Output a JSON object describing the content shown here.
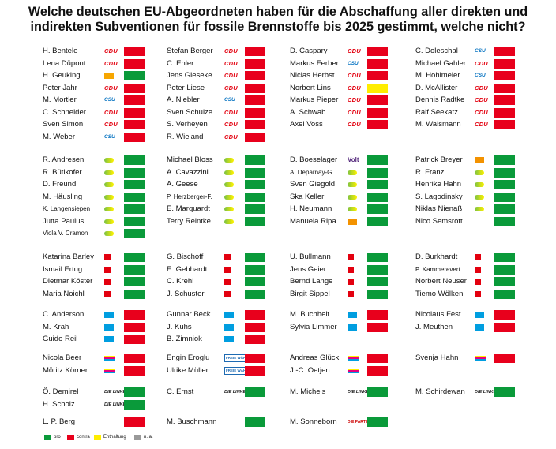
{
  "title": "Welche deutschen EU-Abgeordneten haben für die Abschaffung aller direkten und indirekten Subventionen für fossile Brennstoffe bis 2025 gestimmt, welche nicht?",
  "colors": {
    "pro": "#0a9a3a",
    "contra": "#e8001c",
    "abstain": "#ffed00",
    "na": "#999999"
  },
  "legend": [
    {
      "key": "pro",
      "label": "pro"
    },
    {
      "key": "contra",
      "label": "contra"
    },
    {
      "key": "abstain",
      "label": "Enthaltung"
    },
    {
      "key": "na",
      "label": "n. a."
    }
  ],
  "groups": [
    {
      "id": "cdu-csu",
      "columns": [
        [
          {
            "name": "H. Bentele",
            "party": "CDU",
            "vote": "contra"
          },
          {
            "name": "Lena Düpont",
            "party": "CDU",
            "vote": "contra"
          },
          {
            "name": "H. Geuking",
            "party": "Familien",
            "vote": "pro"
          },
          {
            "name": "Peter Jahr",
            "party": "CDU",
            "vote": "contra"
          },
          {
            "name": "M. Mortler",
            "party": "CSU",
            "vote": "contra"
          },
          {
            "name": "C. Schneider",
            "party": "CDU",
            "vote": "contra"
          },
          {
            "name": "Sven Simon",
            "party": "CDU",
            "vote": "contra"
          },
          {
            "name": "M. Weber",
            "party": "CSU",
            "vote": "contra"
          }
        ],
        [
          {
            "name": "Stefan Berger",
            "party": "CDU",
            "vote": "contra"
          },
          {
            "name": "C. Ehler",
            "party": "CDU",
            "vote": "contra"
          },
          {
            "name": "Jens Gieseke",
            "party": "CDU",
            "vote": "contra"
          },
          {
            "name": "Peter Liese",
            "party": "CDU",
            "vote": "contra"
          },
          {
            "name": "A. Niebler",
            "party": "CSU",
            "vote": "contra"
          },
          {
            "name": "Sven Schulze",
            "party": "CDU",
            "vote": "contra"
          },
          {
            "name": "S. Verheyen",
            "party": "CDU",
            "vote": "contra"
          },
          {
            "name": "R. Wieland",
            "party": "CDU",
            "vote": "contra"
          }
        ],
        [
          {
            "name": "D. Caspary",
            "party": "CDU",
            "vote": "contra"
          },
          {
            "name": "Markus Ferber",
            "party": "CSU",
            "vote": "contra"
          },
          {
            "name": "Niclas Herbst",
            "party": "CDU",
            "vote": "contra"
          },
          {
            "name": "Norbert Lins",
            "party": "CDU",
            "vote": "abstain"
          },
          {
            "name": "Markus Pieper",
            "party": "CDU",
            "vote": "contra"
          },
          {
            "name": "A. Schwab",
            "party": "CDU",
            "vote": "contra"
          },
          {
            "name": "Axel Voss",
            "party": "CDU",
            "vote": "contra"
          }
        ],
        [
          {
            "name": "C. Doleschal",
            "party": "CSU",
            "vote": "contra"
          },
          {
            "name": "Michael Gahler",
            "party": "CDU",
            "vote": "contra"
          },
          {
            "name": "M. Hohlmeier",
            "party": "CSU",
            "vote": "contra"
          },
          {
            "name": "D. McAllister",
            "party": "CDU",
            "vote": "contra"
          },
          {
            "name": "Dennis Radtke",
            "party": "CDU",
            "vote": "contra"
          },
          {
            "name": "Ralf Seekatz",
            "party": "CDU",
            "vote": "contra"
          },
          {
            "name": "M. Walsmann",
            "party": "CDU",
            "vote": "contra"
          }
        ]
      ]
    },
    {
      "id": "greens",
      "columns": [
        [
          {
            "name": "R. Andresen",
            "party": "Grüne",
            "vote": "pro"
          },
          {
            "name": "R. Bütikofer",
            "party": "Grüne",
            "vote": "pro"
          },
          {
            "name": "D. Freund",
            "party": "Grüne",
            "vote": "pro"
          },
          {
            "name": "M. Häusling",
            "party": "Grüne",
            "vote": "pro"
          },
          {
            "name": "K. Langensiepen",
            "party": "Grüne",
            "vote": "pro",
            "small": true
          },
          {
            "name": "Jutta Paulus",
            "party": "Grüne",
            "vote": "pro"
          },
          {
            "name": "Viola V. Cramon",
            "party": "Grüne",
            "vote": "pro",
            "small": true
          }
        ],
        [
          {
            "name": "Michael Bloss",
            "party": "Grüne",
            "vote": "pro"
          },
          {
            "name": "A. Cavazzini",
            "party": "Grüne",
            "vote": "pro"
          },
          {
            "name": "A. Geese",
            "party": "Grüne",
            "vote": "pro"
          },
          {
            "name": "P. Herzberger-F.",
            "party": "Grüne",
            "vote": "pro",
            "small": true
          },
          {
            "name": "E. Marquardt",
            "party": "Grüne",
            "vote": "pro"
          },
          {
            "name": "Terry Reintke",
            "party": "Grüne",
            "vote": "pro"
          }
        ],
        [
          {
            "name": "D. Boeselager",
            "party": "Volt",
            "vote": "pro"
          },
          {
            "name": "A. Deparnay-G.",
            "party": "Grüne",
            "vote": "pro",
            "small": true
          },
          {
            "name": "Sven Giegold",
            "party": "Grüne",
            "vote": "pro"
          },
          {
            "name": "Ska Keller",
            "party": "Grüne",
            "vote": "pro"
          },
          {
            "name": "H. Neumann",
            "party": "Grüne",
            "vote": "pro"
          },
          {
            "name": "Manuela Ripa",
            "party": "ÖDP",
            "vote": "pro"
          }
        ],
        [
          {
            "name": "Patrick Breyer",
            "party": "Piraten",
            "vote": "pro"
          },
          {
            "name": "R. Franz",
            "party": "Grüne",
            "vote": "pro"
          },
          {
            "name": "Henrike Hahn",
            "party": "Grüne",
            "vote": "pro"
          },
          {
            "name": "S. Lagodinsky",
            "party": "Grüne",
            "vote": "pro"
          },
          {
            "name": "Niklas Nienaß",
            "party": "Grüne",
            "vote": "pro"
          },
          {
            "name": "Nico Semsrott",
            "party": "",
            "vote": "pro"
          }
        ]
      ]
    },
    {
      "id": "spd",
      "columns": [
        [
          {
            "name": "Katarina Barley",
            "party": "SPD",
            "vote": "pro"
          },
          {
            "name": "Ismail Ertug",
            "party": "SPD",
            "vote": "pro"
          },
          {
            "name": "Dietmar Köster",
            "party": "SPD",
            "vote": "pro"
          },
          {
            "name": "Maria Noichl",
            "party": "SPD",
            "vote": "pro"
          }
        ],
        [
          {
            "name": "G. Bischoff",
            "party": "SPD",
            "vote": "pro"
          },
          {
            "name": "E. Gebhardt",
            "party": "SPD",
            "vote": "pro"
          },
          {
            "name": "C. Krehl",
            "party": "SPD",
            "vote": "pro"
          },
          {
            "name": "J. Schuster",
            "party": "SPD",
            "vote": "pro"
          }
        ],
        [
          {
            "name": "U. Bullmann",
            "party": "SPD",
            "vote": "pro"
          },
          {
            "name": "Jens Geier",
            "party": "SPD",
            "vote": "pro"
          },
          {
            "name": "Bernd Lange",
            "party": "SPD",
            "vote": "pro"
          },
          {
            "name": "Birgit Sippel",
            "party": "SPD",
            "vote": "pro"
          }
        ],
        [
          {
            "name": "D. Burkhardt",
            "party": "SPD",
            "vote": "pro"
          },
          {
            "name": "P. Kammerevert",
            "party": "SPD",
            "vote": "pro",
            "small": true
          },
          {
            "name": "Norbert Neuser",
            "party": "SPD",
            "vote": "pro"
          },
          {
            "name": "Tiemo Wölken",
            "party": "SPD",
            "vote": "pro"
          }
        ]
      ]
    },
    {
      "id": "afd",
      "columns": [
        [
          {
            "name": "C. Anderson",
            "party": "AfD",
            "vote": "contra"
          },
          {
            "name": "M. Krah",
            "party": "AfD",
            "vote": "contra"
          },
          {
            "name": "Guido Reil",
            "party": "AfD",
            "vote": "contra"
          }
        ],
        [
          {
            "name": "Gunnar Beck",
            "party": "AfD",
            "vote": "contra"
          },
          {
            "name": "J. Kuhs",
            "party": "AfD",
            "vote": "contra"
          },
          {
            "name": "B. Zimniok",
            "party": "AfD",
            "vote": "contra"
          }
        ],
        [
          {
            "name": "M. Buchheit",
            "party": "AfD",
            "vote": "contra"
          },
          {
            "name": "Sylvia Limmer",
            "party": "AfD",
            "vote": "contra"
          }
        ],
        [
          {
            "name": "Nicolaus Fest",
            "party": "AfD",
            "vote": "contra"
          },
          {
            "name": "J. Meuthen",
            "party": "AfD",
            "vote": "contra"
          }
        ]
      ]
    },
    {
      "id": "fdp-fw",
      "columns": [
        [
          {
            "name": "Nicola Beer",
            "party": "FDP",
            "vote": "contra"
          },
          {
            "name": "Möritz Körner",
            "party": "FDP",
            "vote": "contra"
          }
        ],
        [
          {
            "name": "Engin Eroglu",
            "party": "FW",
            "vote": "contra"
          },
          {
            "name": "Ulrike Müller",
            "party": "FW",
            "vote": "contra"
          }
        ],
        [
          {
            "name": "Andreas Glück",
            "party": "FDP",
            "vote": "contra"
          },
          {
            "name": "J.-C. Oetjen",
            "party": "FDP",
            "vote": "contra"
          }
        ],
        [
          {
            "name": "Svenja Hahn",
            "party": "FDP",
            "vote": "contra"
          }
        ]
      ]
    },
    {
      "id": "left",
      "columns": [
        [
          {
            "name": "Ö. Demirel",
            "party": "DIE LINKE.",
            "vote": "pro"
          },
          {
            "name": "H. Scholz",
            "party": "DIE LINKE.",
            "vote": "pro"
          }
        ],
        [
          {
            "name": "C. Ernst",
            "party": "DIE LINKE.",
            "vote": "pro"
          }
        ],
        [
          {
            "name": "M. Michels",
            "party": "DIE LINKE.",
            "vote": "pro"
          }
        ],
        [
          {
            "name": "M. Schirdewan",
            "party": "DIE LINKE.",
            "vote": "pro"
          }
        ]
      ]
    },
    {
      "id": "other",
      "columns": [
        [
          {
            "name": "L. P. Berg",
            "party": "",
            "vote": "contra"
          }
        ],
        [
          {
            "name": "M. Buschmann",
            "party": "",
            "vote": "pro"
          }
        ],
        [
          {
            "name": "M. Sonneborn",
            "party": "DIE PARTEI",
            "vote": "pro"
          }
        ],
        []
      ]
    }
  ]
}
